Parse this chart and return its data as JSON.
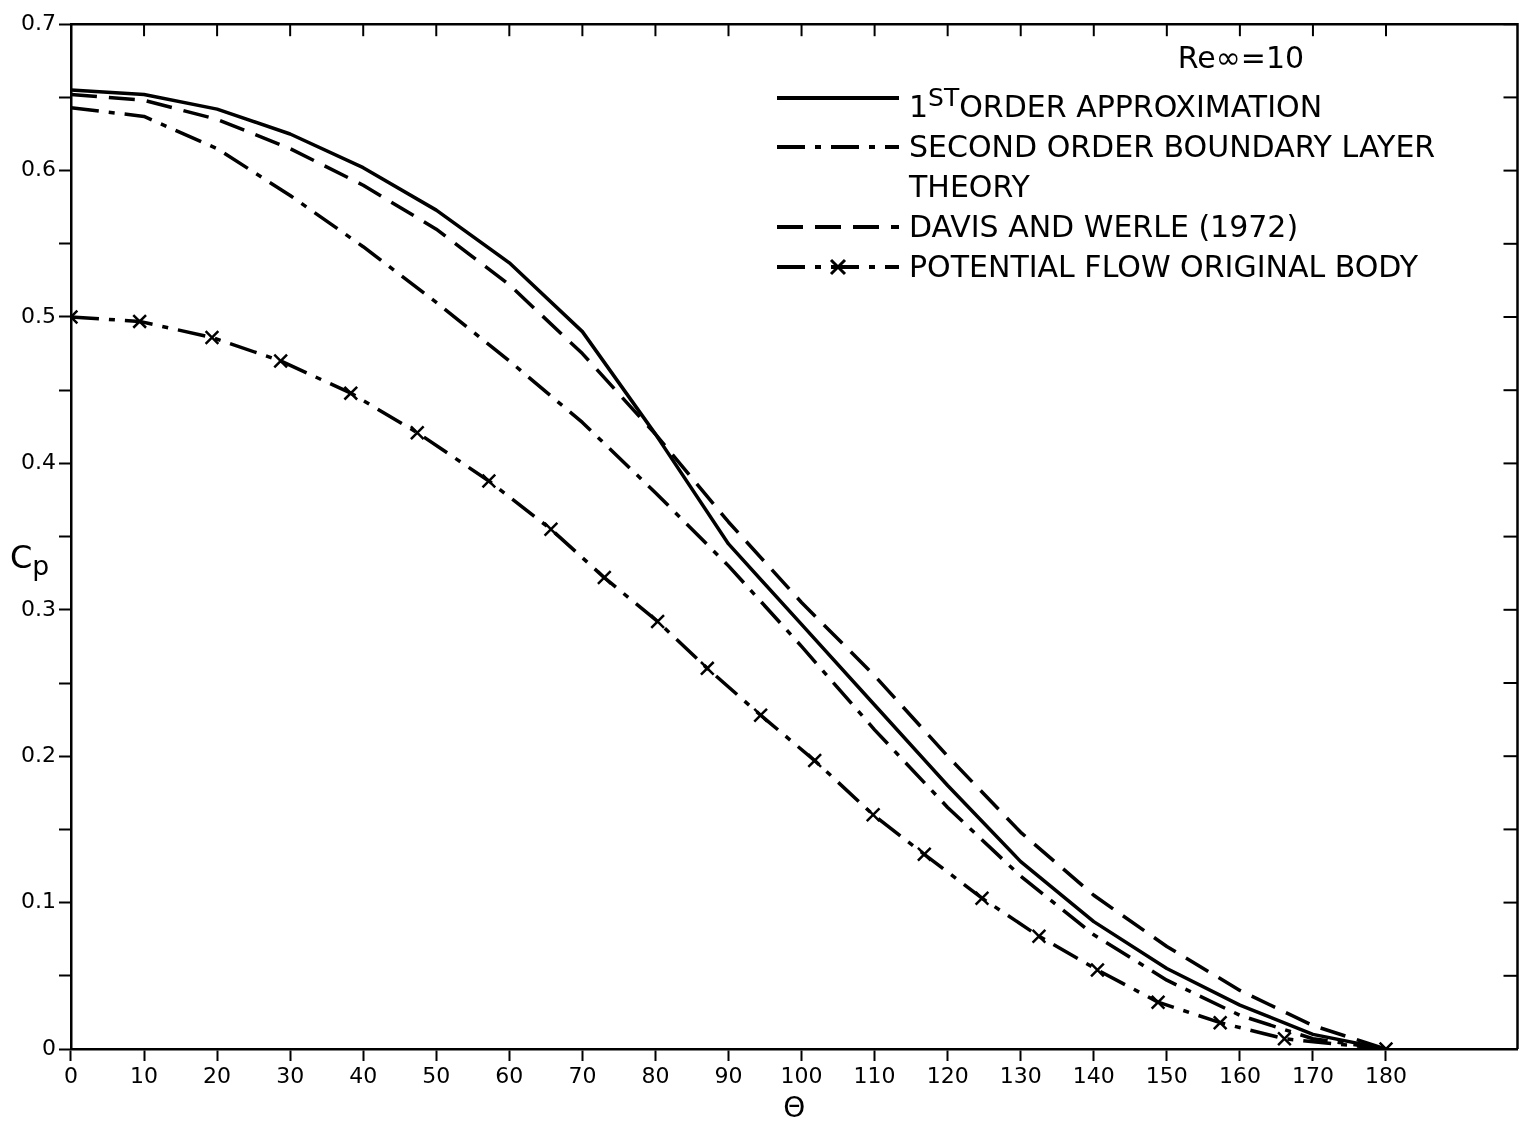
{
  "chart_data": {
    "type": "line",
    "xlabel": "Θ",
    "ylabel": "C$_{p}$",
    "legend_title": "Re∞=10",
    "legend": "top right",
    "grid": false,
    "xlim": [
      0,
      198
    ],
    "xticks": [
      0,
      10,
      20,
      30,
      40,
      50,
      60,
      70,
      80,
      90,
      100,
      110,
      120,
      130,
      140,
      150,
      160,
      170,
      180
    ],
    "ylim": [
      0,
      0.7
    ],
    "yticks": [
      0,
      {
        "value": 0.05,
        "label": null
      },
      0.1,
      {
        "value": 0.15,
        "label": null
      },
      0.2,
      {
        "value": 0.25,
        "label": null
      },
      0.3,
      {
        "value": 0.35,
        "label": null
      },
      0.4,
      {
        "value": 0.45,
        "label": null
      },
      0.5,
      {
        "value": 0.55,
        "label": null
      },
      0.6,
      {
        "value": 0.65,
        "label": null
      },
      0.7
    ],
    "x": [
      0,
      10,
      20,
      30,
      40,
      50,
      60,
      70,
      80,
      90,
      100,
      110,
      120,
      130,
      140,
      150,
      160,
      170,
      180
    ],
    "series": [
      {
        "name": "1$^{ST}$ORDER APPROXIMATION",
        "color": "#000000",
        "line_style": "solid",
        "marker": "none",
        "values": [
          0.655,
          0.652,
          0.642,
          0.625,
          0.602,
          0.573,
          0.537,
          0.49,
          0.42,
          0.345,
          0.29,
          0.235,
          0.18,
          0.128,
          0.087,
          0.055,
          0.03,
          0.01,
          0
        ]
      },
      {
        "name": "SECOND ORDER BOUNDARY LAYER THEORY",
        "color": "#000000",
        "line_style": "dashdot",
        "marker": "none",
        "values": [
          0.643,
          0.637,
          0.615,
          0.583,
          0.548,
          0.51,
          0.47,
          0.428,
          0.38,
          0.33,
          0.275,
          0.218,
          0.165,
          0.118,
          0.078,
          0.047,
          0.023,
          0.007,
          0
        ]
      },
      {
        "name": "DAVIS AND WERLE (1972)",
        "color": "#000000",
        "line_style": "dashed",
        "marker": "none",
        "values": [
          0.652,
          0.648,
          0.635,
          0.615,
          0.59,
          0.56,
          0.522,
          0.475,
          0.42,
          0.36,
          0.305,
          0.255,
          0.2,
          0.148,
          0.105,
          0.07,
          0.04,
          0.016,
          0
        ]
      },
      {
        "name": "POTENTIAL FLOW ORIGINAL BODY",
        "color": "#000000",
        "line_style": "dashdot",
        "marker": "cross",
        "x": [
          0,
          9.4,
          19.3,
          28.7,
          38.3,
          47.4,
          57.2,
          65.7,
          73,
          80.3,
          87.1,
          94.4,
          101.8,
          109.8,
          116.8,
          124.7,
          132.5,
          140.5,
          148.8,
          157.3,
          166.1,
          180
        ],
        "values": [
          0.5,
          0.497,
          0.486,
          0.47,
          0.448,
          0.421,
          0.388,
          0.355,
          0.322,
          0.292,
          0.26,
          0.228,
          0.197,
          0.16,
          0.133,
          0.103,
          0.077,
          0.054,
          0.032,
          0.018,
          0.007,
          0
        ]
      }
    ]
  }
}
